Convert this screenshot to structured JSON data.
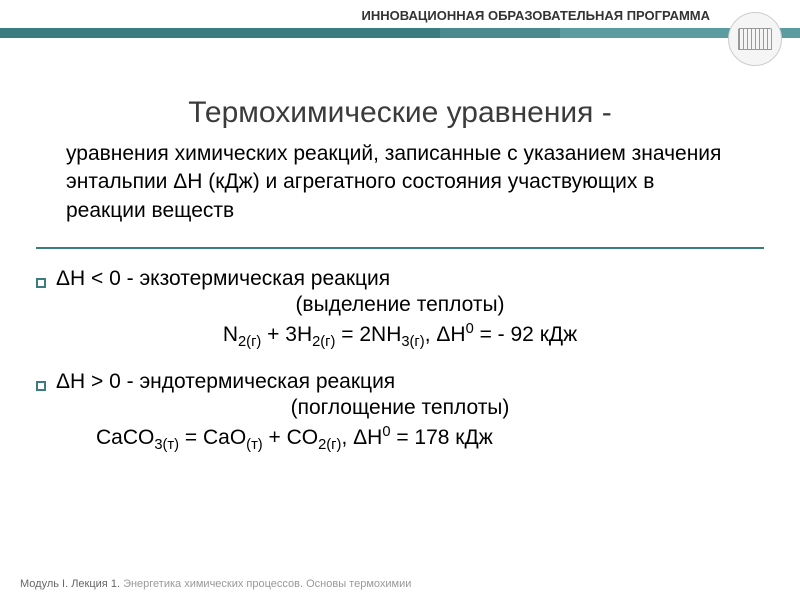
{
  "header": {
    "text": "ИННОВАЦИОННАЯ ОБРАЗОВАТЕЛЬНАЯ ПРОГРАММА"
  },
  "title": "Термохимические уравнения -",
  "definition": "уравнения химических реакций, записанные с указанием значения энтальпии ΔН (кДж) и агрегатного состояния участвующих в реакции веществ",
  "reaction1": {
    "cond": "ΔН < 0 ‑ экзотермическая реакция",
    "note": "(выделение теплоты)",
    "eq_left": "N",
    "eq_n_sub": "2(г)",
    "eq_plus": " + 3H",
    "eq_h_sub": "2(г)",
    "eq_eq": " = 2NH",
    "eq_nh_sub": "3(г)",
    "eq_dh": ", ΔН",
    "eq_sup": "0",
    "eq_val": " = ‑ 92 кДж"
  },
  "reaction2": {
    "cond": "ΔН > 0 ‑ эндотермическая реакция",
    "note": "(поглощение теплоты)",
    "eq_a": "CaCO",
    "eq_a_sub": "3(т)",
    "eq_b": " = CaO",
    "eq_b_sub": "(т)",
    "eq_c": " + CO",
    "eq_c_sub": "2(г)",
    "eq_dh": ", ΔН",
    "eq_sup": "0",
    "eq_val": " = 178 кДж"
  },
  "footer": {
    "module": "Модуль I. Лекция 1. ",
    "topic": "Энергетика химических процессов. Основы термохимии"
  },
  "colors": {
    "teal": "#3b7c80",
    "title_color": "#3b3b3b",
    "text": "#000000",
    "footer_light": "#999999",
    "footer_dark": "#666666",
    "background": "#ffffff"
  },
  "fonts": {
    "header_size": 13,
    "title_size": 30,
    "body_size": 21,
    "footer_size": 11
  }
}
